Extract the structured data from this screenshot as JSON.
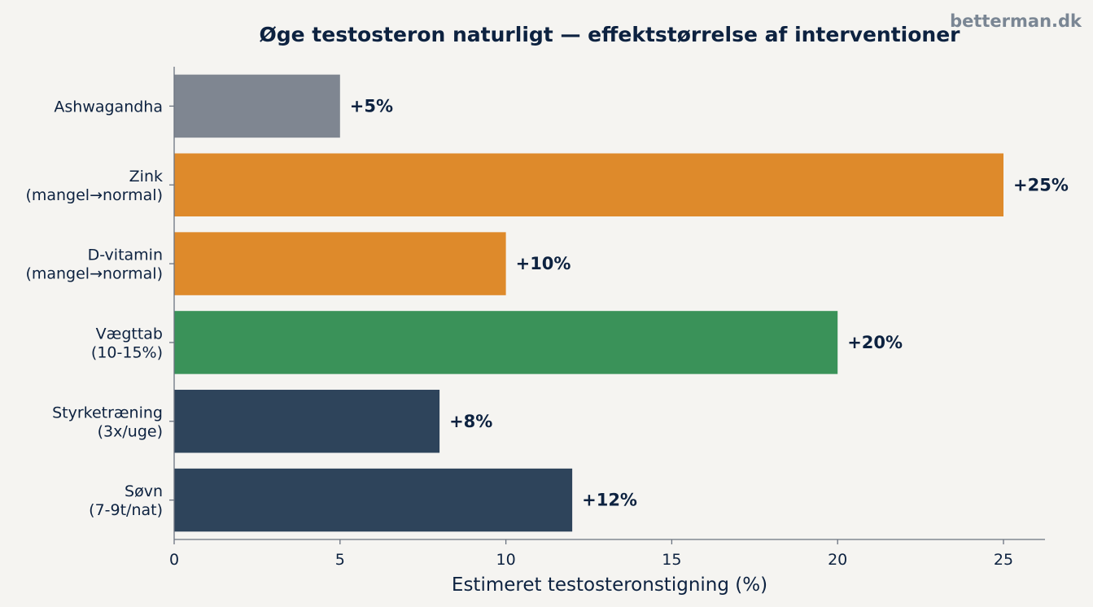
{
  "watermark": "betterman.dk",
  "chart_data": {
    "type": "bar",
    "orientation": "horizontal",
    "title": "Øge testosteron naturligt — effektstørrelse af interventioner",
    "xlabel": "Estimeret testosteronstigning (%)",
    "ylabel": "",
    "xlim": [
      0,
      26.25
    ],
    "xticks": [
      0,
      5,
      10,
      15,
      20,
      25
    ],
    "grid": false,
    "categories": [
      [
        "Ashwagandha"
      ],
      [
        "Zink",
        "(mangel→normal)"
      ],
      [
        "D-vitamin",
        "(mangel→normal)"
      ],
      [
        "Vægttab",
        "(10-15%)"
      ],
      [
        "Styrketræning",
        "(3x/uge)"
      ],
      [
        "Søvn",
        "(7-9t/nat)"
      ]
    ],
    "values": [
      5,
      25,
      10,
      20,
      8,
      12
    ],
    "data_labels": [
      "+5%",
      "+25%",
      "+10%",
      "+20%",
      "+8%",
      "+12%"
    ],
    "colors": [
      "#7f8691",
      "#de8a2b",
      "#de8a2b",
      "#3a9259",
      "#2e445b",
      "#2e445b"
    ]
  }
}
